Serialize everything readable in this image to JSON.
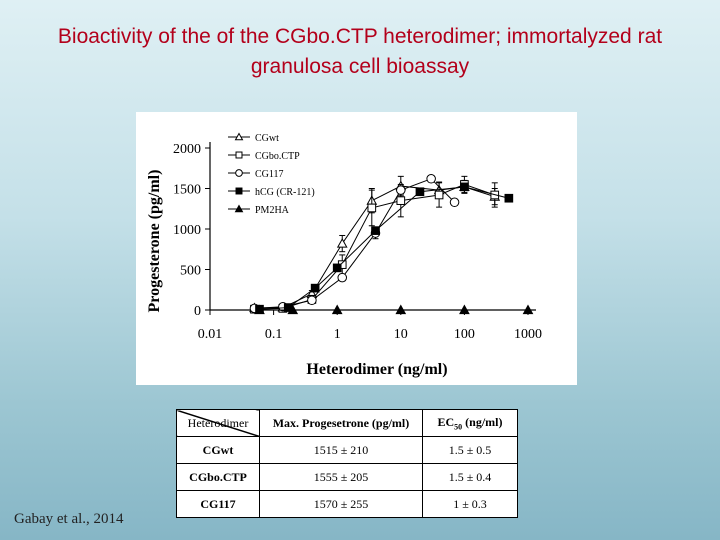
{
  "slide": {
    "title_line1": "Bioactivity of the of the CGbo.CTP heterodimer; immortalyzed rat",
    "title_line2": "granulosa cell bioassay",
    "citation": "Gabay et al., 2014"
  },
  "chart_data": {
    "type": "line",
    "title": "",
    "xlabel": "Heterodimer (ng/ml)",
    "ylabel": "Progesterone (pg/ml)",
    "x_scale": "log",
    "xlim": [
      0.01,
      1000
    ],
    "ylim": [
      0,
      2000
    ],
    "x_ticks": [
      0.01,
      0.1,
      1,
      10,
      100,
      1000
    ],
    "x_tick_labels": [
      "0.01",
      "0.1",
      "1",
      "10",
      "100",
      "1000"
    ],
    "y_ticks": [
      0,
      500,
      1000,
      1500,
      2000
    ],
    "y_tick_labels": [
      "0",
      "500",
      "1000",
      "1500",
      "2000"
    ],
    "legend_position": "top-left",
    "series": [
      {
        "name": "CGwt",
        "marker": "triangle-open",
        "x": [
          0.05,
          0.14,
          0.4,
          1.2,
          3.5,
          10,
          40,
          100,
          300
        ],
        "y": [
          25,
          30,
          200,
          820,
          1350,
          1530,
          1480,
          1520,
          1400
        ],
        "err": [
          25,
          20,
          40,
          100,
          150,
          120,
          100,
          80,
          100
        ]
      },
      {
        "name": "CGbo.CTP",
        "marker": "square-open",
        "x": [
          0.05,
          0.14,
          0.4,
          1.2,
          3.5,
          10,
          40,
          100,
          300
        ],
        "y": [
          10,
          20,
          130,
          560,
          1260,
          1350,
          1420,
          1550,
          1420
        ],
        "err": [
          10,
          20,
          50,
          120,
          220,
          200,
          150,
          100,
          150
        ]
      },
      {
        "name": "CG117",
        "marker": "circle-open",
        "x": [
          0.05,
          0.14,
          0.4,
          1.2,
          4,
          10,
          30,
          70
        ],
        "y": [
          20,
          40,
          120,
          400,
          950,
          1480,
          1620,
          1330
        ],
        "err": [
          10,
          10,
          30,
          40,
          70,
          50,
          40,
          40
        ]
      },
      {
        "name": "hCG (CR-121)",
        "marker": "square-filled",
        "x": [
          0.06,
          0.17,
          0.45,
          1.0,
          4.0,
          20,
          100,
          500
        ],
        "y": [
          10,
          30,
          270,
          520,
          980,
          1460,
          1520,
          1380
        ],
        "err": [
          0,
          0,
          0,
          0,
          0,
          0,
          0,
          0
        ]
      },
      {
        "name": "PM2HA",
        "marker": "triangle-filled",
        "x": [
          0.06,
          0.2,
          1,
          10,
          100,
          1000
        ],
        "y": [
          0,
          0,
          0,
          0,
          0,
          0
        ],
        "err": [
          0,
          0,
          0,
          0,
          0,
          0
        ]
      }
    ]
  },
  "results_table": {
    "header": {
      "heterodimer": "Heterodimer",
      "max": "Max. Progesetrone (pg/ml)",
      "ec_prefix": "EC",
      "ec_sub": "50",
      "ec_suffix": " (ng/ml)"
    },
    "rows": [
      {
        "name": "CGwt",
        "max": "1515 ± 210",
        "ec50": "1.5 ± 0.5"
      },
      {
        "name": "CGbo.CTP",
        "max": "1555 ± 205",
        "ec50": "1.5 ± 0.4"
      },
      {
        "name": "CG117",
        "max": "1570 ± 255",
        "ec50": "1 ± 0.3"
      }
    ]
  }
}
